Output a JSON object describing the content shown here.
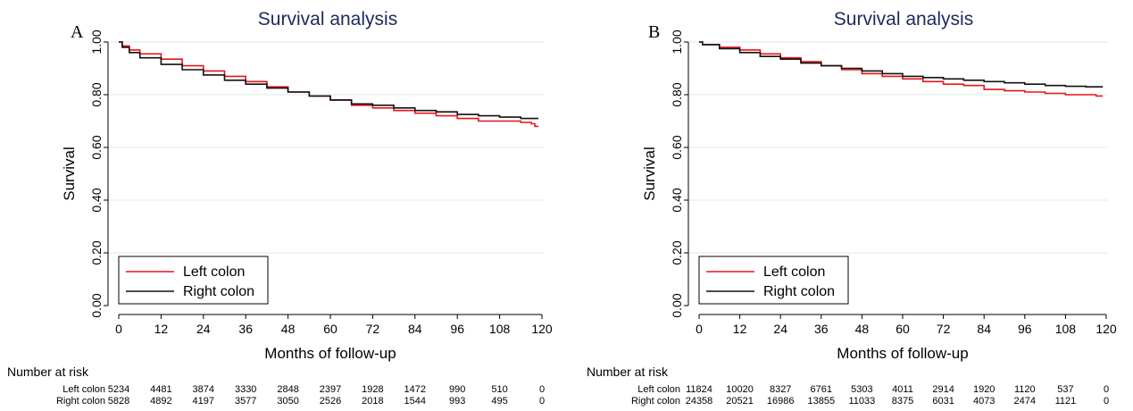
{
  "risk_table_header": "Number at risk",
  "colors": {
    "left": "#e8141c",
    "right": "#111111",
    "grid": "#d8ebe9",
    "title": "#1a2a5e"
  },
  "chart_data": [
    {
      "type": "line",
      "panel": "A",
      "title": "Survival analysis",
      "xlabel": "Months of follow-up",
      "ylabel": "Survival",
      "xlim": [
        0,
        120
      ],
      "ylim": [
        0,
        1
      ],
      "x_ticks": [
        0,
        12,
        24,
        36,
        48,
        60,
        72,
        84,
        96,
        108,
        120
      ],
      "y_ticks": [
        "0.00",
        "0.20",
        "0.40",
        "0.60",
        "0.80",
        "1.00"
      ],
      "grid": true,
      "legend_position": "bottom-left",
      "series": [
        {
          "name": "Left colon",
          "color": "#e8141c",
          "x": [
            0,
            1,
            3,
            6,
            12,
            18,
            24,
            30,
            36,
            42,
            48,
            54,
            60,
            66,
            72,
            78,
            84,
            90,
            96,
            102,
            108,
            114,
            117,
            118,
            119
          ],
          "y": [
            1.0,
            0.985,
            0.97,
            0.955,
            0.935,
            0.91,
            0.89,
            0.87,
            0.85,
            0.83,
            0.81,
            0.795,
            0.78,
            0.76,
            0.75,
            0.74,
            0.73,
            0.72,
            0.71,
            0.7,
            0.7,
            0.695,
            0.69,
            0.68,
            0.68
          ]
        },
        {
          "name": "Right colon",
          "color": "#111111",
          "x": [
            0,
            1,
            3,
            6,
            12,
            18,
            24,
            30,
            36,
            42,
            48,
            54,
            60,
            66,
            72,
            78,
            84,
            90,
            96,
            102,
            108,
            114,
            119
          ],
          "y": [
            1.0,
            0.98,
            0.96,
            0.94,
            0.915,
            0.895,
            0.875,
            0.855,
            0.84,
            0.825,
            0.81,
            0.795,
            0.78,
            0.765,
            0.76,
            0.75,
            0.74,
            0.735,
            0.725,
            0.72,
            0.715,
            0.71,
            0.71
          ]
        }
      ],
      "risk_table": [
        {
          "label": "Left colon",
          "values": [
            "5234",
            "4481",
            "3874",
            "3330",
            "2848",
            "2397",
            "1928",
            "1472",
            "990",
            "510",
            "0"
          ]
        },
        {
          "label": "Right colon",
          "values": [
            "5828",
            "4892",
            "4197",
            "3577",
            "3050",
            "2526",
            "2018",
            "1544",
            "993",
            "495",
            "0"
          ]
        }
      ]
    },
    {
      "type": "line",
      "panel": "B",
      "title": "Survival analysis",
      "xlabel": "Months of follow-up",
      "ylabel": "Survival",
      "xlim": [
        0,
        120
      ],
      "ylim": [
        0,
        1
      ],
      "x_ticks": [
        0,
        12,
        24,
        36,
        48,
        60,
        72,
        84,
        96,
        108,
        120
      ],
      "y_ticks": [
        "0.00",
        "0.20",
        "0.40",
        "0.60",
        "0.80",
        "1.00"
      ],
      "grid": true,
      "legend_position": "bottom-left",
      "series": [
        {
          "name": "Left colon",
          "color": "#e8141c",
          "x": [
            0,
            1,
            6,
            12,
            18,
            24,
            30,
            36,
            42,
            48,
            54,
            60,
            66,
            72,
            78,
            84,
            90,
            96,
            102,
            108,
            114,
            117,
            119
          ],
          "y": [
            1.0,
            0.99,
            0.98,
            0.97,
            0.955,
            0.94,
            0.925,
            0.91,
            0.895,
            0.88,
            0.87,
            0.86,
            0.85,
            0.84,
            0.835,
            0.82,
            0.815,
            0.81,
            0.805,
            0.8,
            0.8,
            0.795,
            0.795
          ]
        },
        {
          "name": "Right colon",
          "color": "#111111",
          "x": [
            0,
            1,
            6,
            12,
            18,
            24,
            30,
            36,
            42,
            48,
            54,
            60,
            66,
            72,
            78,
            84,
            90,
            96,
            102,
            108,
            114,
            119
          ],
          "y": [
            1.0,
            0.99,
            0.975,
            0.96,
            0.945,
            0.935,
            0.92,
            0.91,
            0.9,
            0.89,
            0.88,
            0.87,
            0.865,
            0.86,
            0.855,
            0.85,
            0.845,
            0.84,
            0.835,
            0.832,
            0.83,
            0.83
          ]
        }
      ],
      "risk_table": [
        {
          "label": "Left colon",
          "values": [
            "11824",
            "10020",
            "8327",
            "6761",
            "5303",
            "4011",
            "2914",
            "1920",
            "1120",
            "537",
            "0"
          ]
        },
        {
          "label": "Right colon",
          "values": [
            "24358",
            "20521",
            "16986",
            "13855",
            "11033",
            "8375",
            "6031",
            "4073",
            "2474",
            "1121",
            "0"
          ]
        }
      ]
    }
  ]
}
